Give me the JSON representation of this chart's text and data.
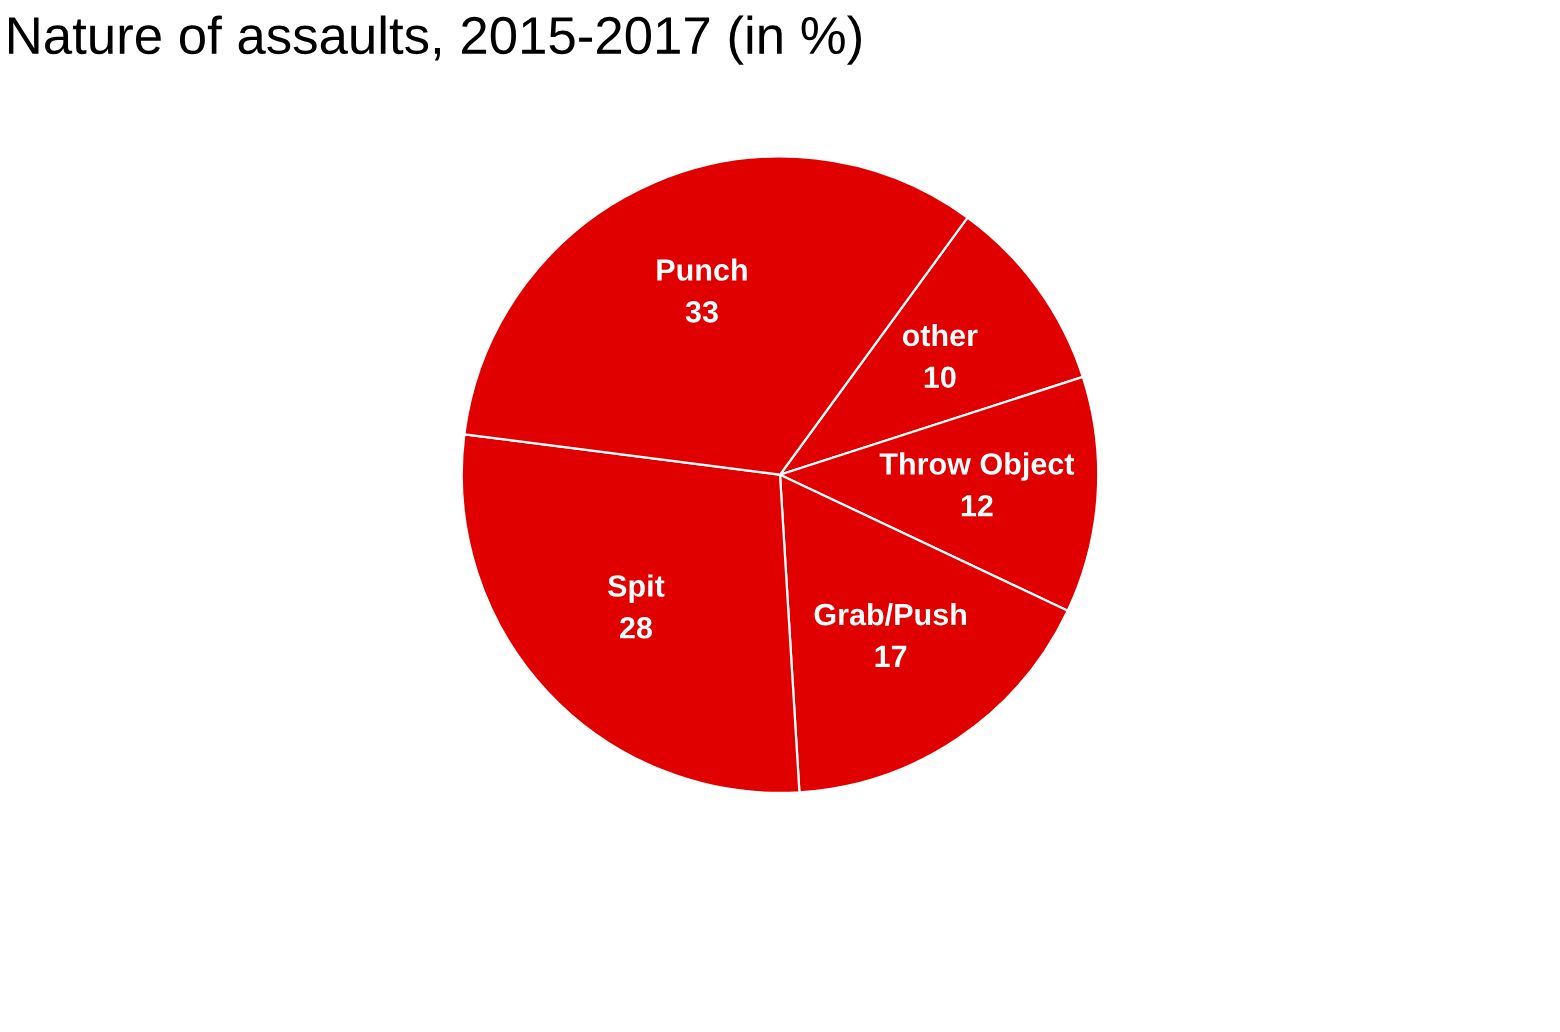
{
  "chart_data": {
    "type": "pie",
    "title": "Nature of assaults, 2015-2017 (in %)",
    "categories": [
      "other",
      "Throw Object",
      "Grab/Push",
      "Spit",
      "Punch"
    ],
    "values": [
      10,
      12,
      17,
      28,
      33
    ],
    "colors": [
      "#e00000",
      "#e00000",
      "#e00000",
      "#e00000",
      "#e00000"
    ],
    "data_labels": true
  }
}
